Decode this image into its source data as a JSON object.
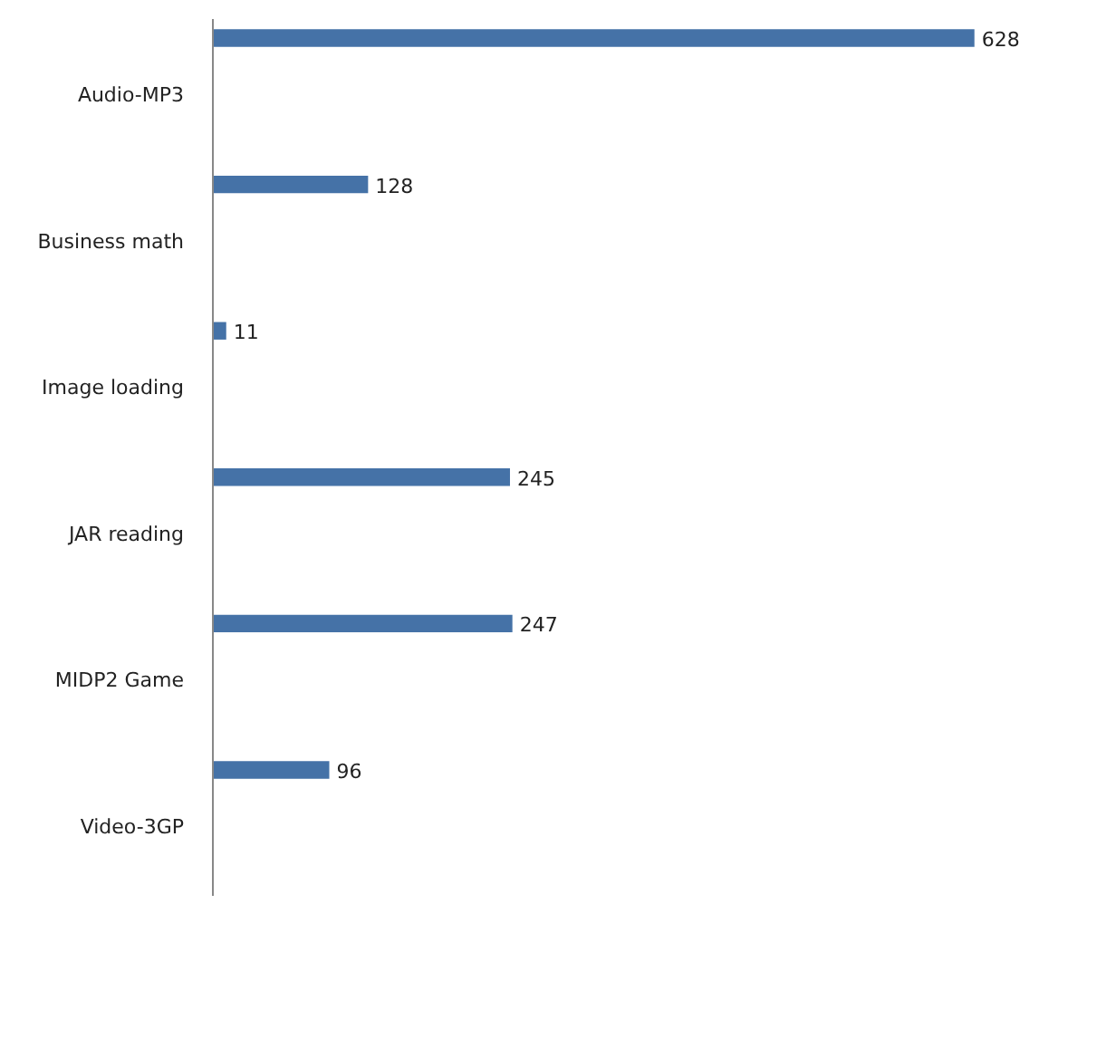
{
  "chart_data": {
    "type": "bar",
    "orientation": "horizontal",
    "categories": [
      "Audio-MP3",
      "Business math",
      "Image loading",
      "JAR reading",
      "MIDP2 Game",
      "Video-3GP"
    ],
    "values": [
      628,
      128,
      11,
      245,
      247,
      96
    ],
    "color": "#4572a7",
    "data_labels": true,
    "tick_labels": "y"
  }
}
